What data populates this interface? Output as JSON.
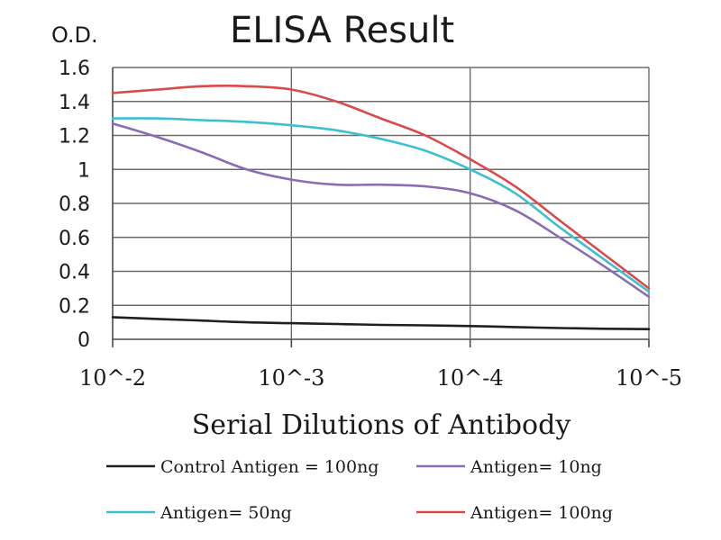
{
  "chart_data": {
    "type": "line",
    "title": "ELISA Result",
    "ylabel": "O.D.",
    "xlabel": "Serial Dilutions of Antibody",
    "x_scale": "log",
    "x_tick_labels": [
      "10^-2",
      "10^-3",
      "10^-4",
      "10^-5"
    ],
    "x": [
      0.01,
      0.0056,
      0.00316,
      0.00178,
      0.001,
      0.00056,
      0.000316,
      0.000178,
      0.0001,
      5.6e-05,
      3.16e-05,
      1.78e-05,
      1e-05
    ],
    "ylim": [
      0,
      1.6
    ],
    "y_ticks": [
      0,
      0.2,
      0.4,
      0.6,
      0.8,
      1,
      1.2,
      1.4,
      1.6
    ],
    "grid": true,
    "legend_position": "bottom",
    "series": [
      {
        "name": "Control Antigen = 100ng",
        "color": "#1f1f1f",
        "values": [
          0.13,
          0.12,
          0.11,
          0.1,
          0.095,
          0.09,
          0.085,
          0.082,
          0.078,
          0.072,
          0.066,
          0.062,
          0.06
        ]
      },
      {
        "name": "Antigen= 10ng",
        "color": "#8a6bb5",
        "values": [
          1.27,
          1.19,
          1.1,
          1.0,
          0.94,
          0.91,
          0.91,
          0.9,
          0.86,
          0.76,
          0.6,
          0.43,
          0.25
        ]
      },
      {
        "name": "Antigen= 50ng",
        "color": "#3dbfcf",
        "values": [
          1.3,
          1.3,
          1.29,
          1.28,
          1.26,
          1.23,
          1.18,
          1.11,
          1.0,
          0.86,
          0.66,
          0.47,
          0.28
        ]
      },
      {
        "name": "Antigen= 100ng",
        "color": "#d94a4a",
        "values": [
          1.45,
          1.47,
          1.49,
          1.49,
          1.47,
          1.4,
          1.3,
          1.2,
          1.06,
          0.9,
          0.7,
          0.5,
          0.3
        ]
      }
    ]
  }
}
